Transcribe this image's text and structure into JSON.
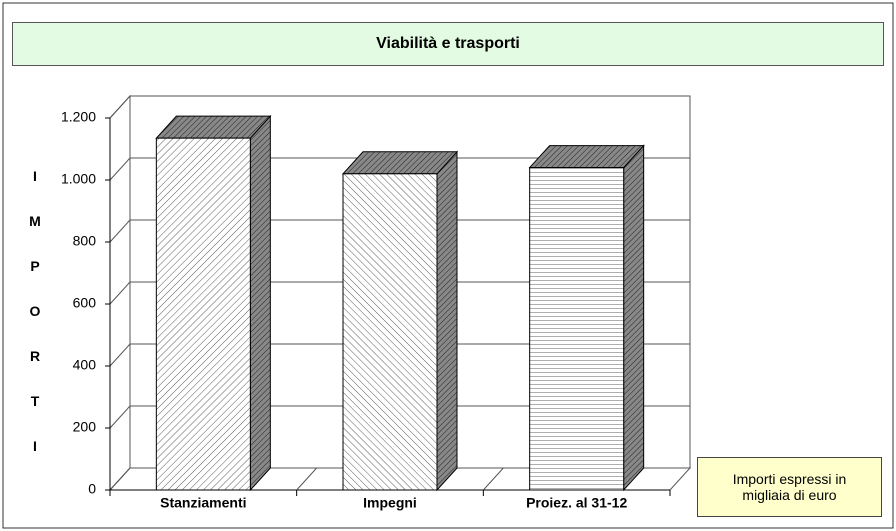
{
  "chart_data": {
    "type": "bar3d",
    "title": "Viabilità e trasporti",
    "y_label": "IMPORTI",
    "categories": [
      "Stanziamenti",
      "Impegni",
      "Proiez. al 31-12"
    ],
    "values": [
      1135,
      1020,
      1040
    ],
    "ylim": [
      0,
      1200
    ],
    "yticks": [
      0,
      200,
      400,
      600,
      800,
      {
        "value": 1000,
        "label": "1.000"
      },
      {
        "value": 1200,
        "label": "1.200"
      }
    ],
    "grid": true,
    "note": "Importi espressi in migliaia di euro"
  }
}
